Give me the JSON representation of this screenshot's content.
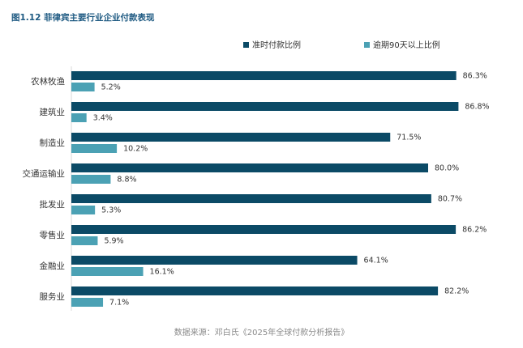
{
  "figure_title": "图1.12 菲律宾主要行业企业付款表现",
  "source_text": "数据来源：邓白氏《2025年全球付款分析报告》",
  "colors": {
    "series_on_time": "#0b4a66",
    "series_overdue": "#4ba1b4",
    "title": "#1e5a82"
  },
  "chart_data": {
    "type": "bar",
    "orientation": "horizontal",
    "title": "",
    "xlabel": "",
    "ylabel": "",
    "xlim": [
      0,
      100
    ],
    "grid": false,
    "legend_position": "top-right",
    "value_suffix": "%",
    "categories": [
      "农林牧渔",
      "建筑业",
      "制造业",
      "交通运输业",
      "批发业",
      "零售业",
      "金融业",
      "服务业"
    ],
    "series": [
      {
        "name": "准时付款比例",
        "values": [
          86.3,
          86.8,
          71.5,
          80.0,
          80.7,
          86.2,
          64.1,
          82.2
        ]
      },
      {
        "name": "逾期90天以上比例",
        "values": [
          5.2,
          3.4,
          10.2,
          8.8,
          5.3,
          5.9,
          16.1,
          7.1
        ]
      }
    ]
  }
}
